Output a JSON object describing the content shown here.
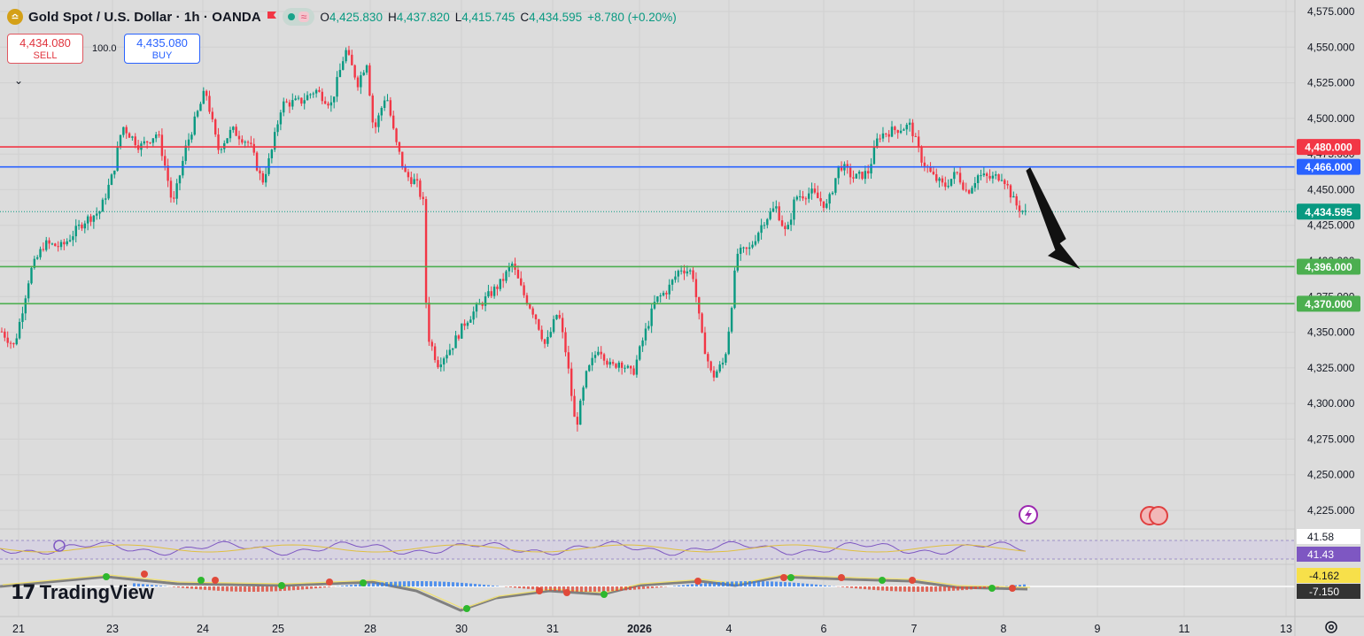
{
  "header": {
    "symbol_title": "Gold Spot / U.S. Dollar · 1h · OANDA",
    "open_label": "O",
    "open": "4,425.830",
    "high_label": "H",
    "high": "4,437.820",
    "low_label": "L",
    "low": "4,415.745",
    "close_label": "C",
    "close": "4,434.595",
    "change": "+8.780 (+0.20%)"
  },
  "trade": {
    "sell_price": "4,434.080",
    "sell_label": "SELL",
    "buy_price": "4,435.080",
    "buy_label": "BUY",
    "spread": "100.0"
  },
  "brand": {
    "name": "TradingView"
  },
  "colors": {
    "up": "#089981",
    "down": "#f23645",
    "resistance": "#f23645",
    "support_blue": "#2962ff",
    "support_green": "#4caf50",
    "background": "#dcdcdc"
  },
  "chart_data": {
    "type": "candlestick",
    "y_range": [
      4212,
      4580
    ],
    "y_ticks": [
      "4,575.000",
      "4,550.000",
      "4,525.000",
      "4,500.000",
      "4,475.000",
      "4,450.000",
      "4,425.000",
      "4,400.000",
      "4,375.000",
      "4,350.000",
      "4,325.000",
      "4,300.000",
      "4,275.000",
      "4,250.000",
      "4,225.000"
    ],
    "x_ticks": [
      "21",
      "23",
      "24",
      "25",
      "28",
      "30",
      "31",
      "2026",
      "4",
      "6",
      "7",
      "8",
      "9",
      "11",
      "13"
    ],
    "price_lines": [
      {
        "name": "resistance-line",
        "value": 4480,
        "label": "4,480.000",
        "color": "#f23645"
      },
      {
        "name": "blue-line",
        "value": 4466,
        "label": "4,466.000",
        "color": "#2962ff"
      },
      {
        "name": "support-line-1",
        "value": 4396,
        "label": "4,396.000",
        "color": "#4caf50"
      },
      {
        "name": "support-line-2",
        "value": 4370,
        "label": "4,370.000",
        "color": "#4caf50"
      }
    ],
    "last_price": {
      "value": 4434.595,
      "label": "4,434.595",
      "color": "#089981"
    },
    "anchors": [
      [
        0,
        4352
      ],
      [
        16,
        4340
      ],
      [
        24,
        4362
      ],
      [
        34,
        4392
      ],
      [
        50,
        4412
      ],
      [
        70,
        4410
      ],
      [
        95,
        4428
      ],
      [
        113,
        4435
      ],
      [
        128,
        4462
      ],
      [
        138,
        4495
      ],
      [
        158,
        4480
      ],
      [
        178,
        4490
      ],
      [
        188,
        4462
      ],
      [
        195,
        4438
      ],
      [
        210,
        4480
      ],
      [
        222,
        4502
      ],
      [
        232,
        4520
      ],
      [
        246,
        4478
      ],
      [
        262,
        4492
      ],
      [
        282,
        4482
      ],
      [
        296,
        4455
      ],
      [
        306,
        4475
      ],
      [
        318,
        4510
      ],
      [
        340,
        4512
      ],
      [
        356,
        4520
      ],
      [
        374,
        4510
      ],
      [
        390,
        4548
      ],
      [
        404,
        4525
      ],
      [
        414,
        4540
      ],
      [
        422,
        4490
      ],
      [
        436,
        4518
      ],
      [
        446,
        4485
      ],
      [
        458,
        4460
      ],
      [
        470,
        4455
      ],
      [
        478,
        4440
      ],
      [
        482,
        4350
      ],
      [
        494,
        4328
      ],
      [
        510,
        4340
      ],
      [
        526,
        4358
      ],
      [
        546,
        4372
      ],
      [
        566,
        4385
      ],
      [
        578,
        4398
      ],
      [
        590,
        4378
      ],
      [
        604,
        4362
      ],
      [
        616,
        4340
      ],
      [
        630,
        4365
      ],
      [
        640,
        4332
      ],
      [
        650,
        4282
      ],
      [
        662,
        4320
      ],
      [
        676,
        4340
      ],
      [
        690,
        4325
      ],
      [
        700,
        4330
      ],
      [
        714,
        4320
      ],
      [
        726,
        4345
      ],
      [
        740,
        4372
      ],
      [
        754,
        4380
      ],
      [
        768,
        4395
      ],
      [
        782,
        4392
      ],
      [
        792,
        4348
      ],
      [
        804,
        4318
      ],
      [
        818,
        4330
      ],
      [
        824,
        4358
      ],
      [
        832,
        4405
      ],
      [
        846,
        4408
      ],
      [
        862,
        4428
      ],
      [
        876,
        4438
      ],
      [
        888,
        4418
      ],
      [
        898,
        4445
      ],
      [
        916,
        4448
      ],
      [
        934,
        4438
      ],
      [
        948,
        4468
      ],
      [
        964,
        4458
      ],
      [
        980,
        4462
      ],
      [
        992,
        4488
      ],
      [
        1010,
        4492
      ],
      [
        1028,
        4495
      ],
      [
        1040,
        4472
      ],
      [
        1052,
        4460
      ],
      [
        1066,
        4452
      ],
      [
        1080,
        4462
      ],
      [
        1092,
        4448
      ],
      [
        1104,
        4460
      ],
      [
        1118,
        4458
      ],
      [
        1132,
        4460
      ],
      [
        1146,
        4440
      ],
      [
        1160,
        4432
      ]
    ],
    "arrow_annotation": {
      "direction": "down",
      "from_price": 4465,
      "to_price": 4396
    },
    "rsi": {
      "value_1": "41.58",
      "value_2": "41.43"
    },
    "macd": {
      "value_1": "-4.162",
      "value_2": "-7.150"
    }
  }
}
